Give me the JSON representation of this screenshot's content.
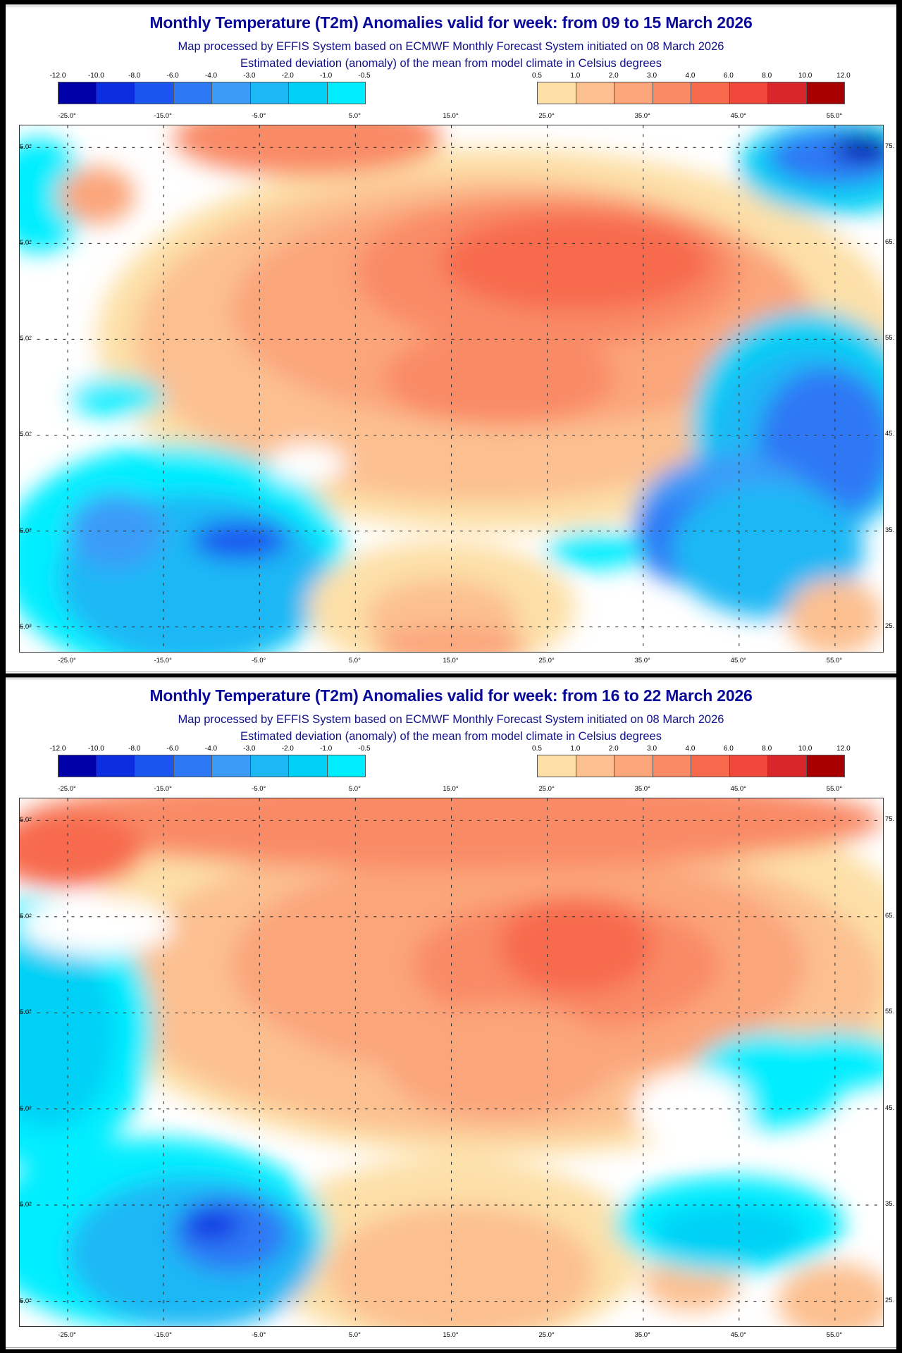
{
  "panels": [
    {
      "title": "Monthly Temperature (T2m) Anomalies valid for week: from 09 to 15 March 2026",
      "subtitle": "Map processed by EFFIS System based on ECMWF Monthly Forecast System initiated on 08 March 2026",
      "description": "Estimated deviation (anomaly) of the mean from model climate in Celsius degrees"
    },
    {
      "title": "Monthly Temperature (T2m) Anomalies valid for week: from 16 to 22 March 2026",
      "subtitle": "Map processed by EFFIS System based on ECMWF Monthly Forecast System initiated on 08 March 2026",
      "description": "Estimated deviation (anomaly) of the mean from model climate in Celsius degrees"
    }
  ],
  "colorbar_cold": {
    "labels": [
      "-12.0",
      "-10.0",
      "-8.0",
      "-6.0",
      "-4.0",
      "-3.0",
      "-2.0",
      "-1.0",
      "-0.5"
    ],
    "colors": [
      "#0000a8",
      "#0a2ee0",
      "#1a55f0",
      "#2d78f5",
      "#3b9cf8",
      "#1cb8f5",
      "#00d0f5",
      "#00eeff"
    ]
  },
  "colorbar_warm": {
    "labels": [
      "0.5",
      "1.0",
      "2.0",
      "3.0",
      "4.0",
      "6.0",
      "8.0",
      "10.0",
      "12.0"
    ],
    "colors": [
      "#fde0a8",
      "#fcc090",
      "#fba57a",
      "#f98a66",
      "#f76a4e",
      "#f0483a",
      "#d8262a",
      "#a80000"
    ]
  },
  "lon_labels": [
    "-25.0°",
    "-15.0°",
    "-5.0°",
    "5.0°",
    "15.0°",
    "25.0°",
    "35.0°",
    "45.0°",
    "55.0°"
  ],
  "lat_labels_right": [
    "75.",
    "65.",
    "55.",
    "45.",
    "35.",
    "25."
  ],
  "lat_labels_left": [
    "5.0°",
    "5.0°",
    "5.0°",
    "5.0°",
    "5.0°",
    "5.0°"
  ]
}
